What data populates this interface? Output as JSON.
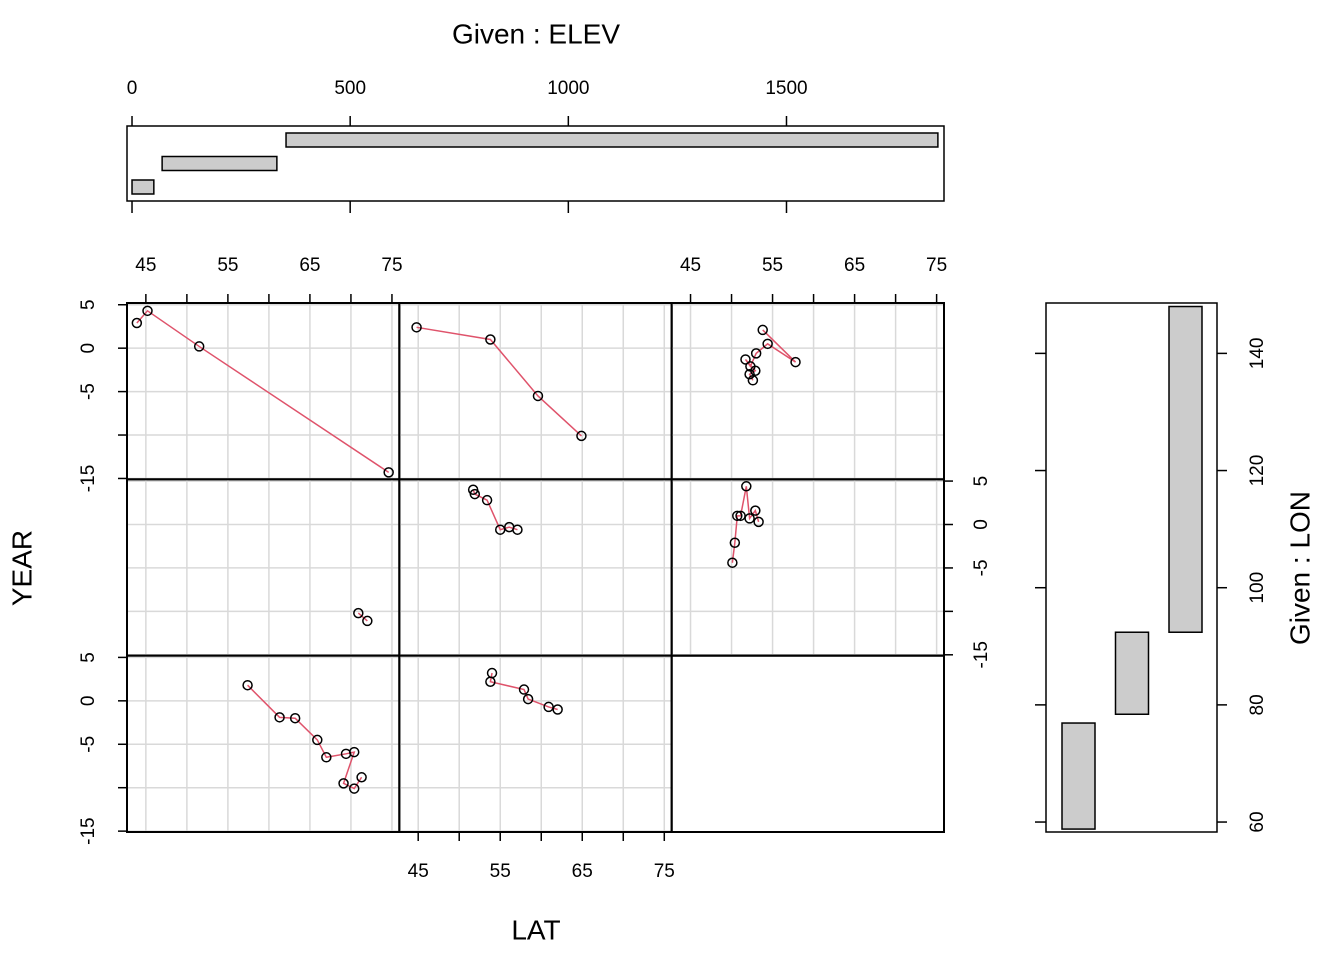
{
  "chart_data": {
    "type": "coplot",
    "x_label": "LAT",
    "y_label": "YEAR",
    "given_x_label": "Given : ELEV",
    "given_y_label": "Given : LON",
    "xlim": [
      42.7,
      75.9
    ],
    "xticks": [
      45,
      55,
      65,
      75
    ],
    "xminor_ticks": [
      50,
      60,
      70
    ],
    "ylim": [
      -15.1,
      5.2
    ],
    "yticks": [
      -15,
      -5,
      0,
      5
    ],
    "yminor_ticks": [
      -10
    ],
    "grid": true,
    "point_color": "#000000",
    "line_color": "#DF536B",
    "bar_color": "#cccccc",
    "elev_lim": [
      -11.5,
      1861
    ],
    "elev_ticks": [
      0,
      500,
      1000,
      1500
    ],
    "elev_intervals": [
      [
        0,
        50
      ],
      [
        69,
        332
      ],
      [
        353,
        1847
      ]
    ],
    "lon_lim": [
      58.3,
      148.6
    ],
    "lon_ticks": [
      60,
      80,
      100,
      120,
      140
    ],
    "lon_intervals": [
      [
        58.8,
        76.9
      ],
      [
        78.4,
        92.4
      ],
      [
        92.4,
        148
      ]
    ],
    "panels": [
      {
        "x": [
          43.9,
          45.2,
          51.5,
          74.6
        ],
        "y": [
          2.9,
          4.3,
          0.2,
          -14.3
        ]
      },
      {
        "x": [
          44.8,
          53.8,
          59.6,
          64.9
        ],
        "y": [
          2.4,
          1.0,
          -5.5,
          -10.1
        ]
      },
      {
        "x": [
          53.8,
          57.8,
          54.4,
          53.0,
          52.3,
          51.7,
          52.9,
          52.2,
          52.6
        ],
        "y": [
          2.1,
          -1.6,
          0.5,
          -0.6,
          -2.1,
          -1.3,
          -2.6,
          -3.0,
          -3.7
        ]
      },
      {
        "x": [
          70.9,
          72.0
        ],
        "y": [
          -10.2,
          -11.1
        ]
      },
      {
        "x": [
          51.7,
          51.9,
          53.4,
          55.0,
          56.1,
          57.1
        ],
        "y": [
          4.0,
          3.5,
          2.8,
          -0.6,
          -0.3,
          -0.6
        ]
      },
      {
        "x": [
          50.1,
          50.4,
          50.7,
          51.1,
          51.8,
          52.2,
          52.9,
          53.3
        ],
        "y": [
          -4.4,
          -2.1,
          1.0,
          1.0,
          4.4,
          0.7,
          1.6,
          0.3
        ]
      },
      {
        "x": [
          57.4,
          61.3,
          63.2,
          65.9,
          67.0,
          69.4,
          70.4,
          69.1,
          70.4,
          71.3
        ],
        "y": [
          1.8,
          -1.9,
          -2.0,
          -4.5,
          -6.5,
          -6.1,
          -5.9,
          -9.5,
          -10.1,
          -8.8
        ]
      },
      {
        "x": [
          54.0,
          53.8,
          57.9,
          58.4,
          60.9,
          62.0
        ],
        "y": [
          3.2,
          2.2,
          1.3,
          0.2,
          -0.7,
          -1.0
        ]
      },
      {
        "x": [],
        "y": []
      }
    ]
  }
}
